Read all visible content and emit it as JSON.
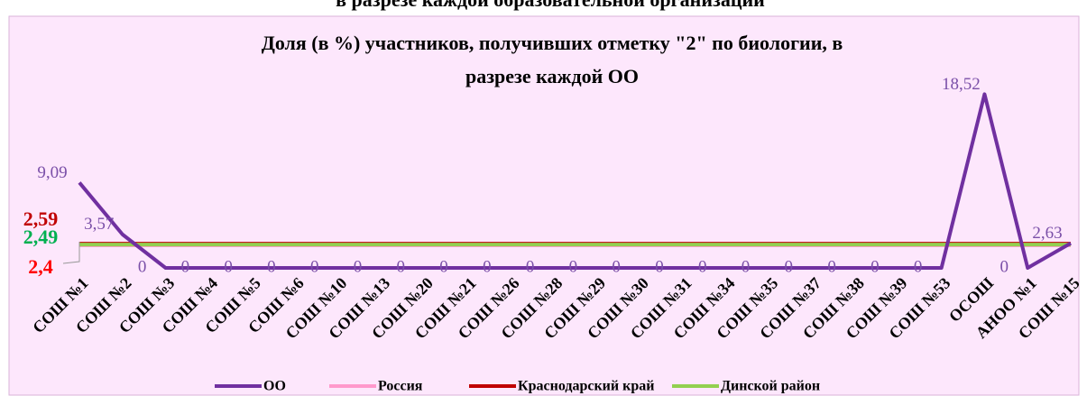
{
  "header": {
    "title": "в разрезе каждой образовательной организации"
  },
  "chart_data": {
    "type": "line",
    "title": [
      "Доля (в %) участников, получивших отметку \"2\" по биологии, в",
      "разрезе каждой ОО"
    ],
    "categories": [
      "СОШ №1",
      "СОШ №2",
      "СОШ №3",
      "СОШ №4",
      "СОШ №5",
      "СОШ №6",
      "СОШ №10",
      "СОШ №13",
      "СОШ №20",
      "СОШ №21",
      "СОШ №26",
      "СОШ №28",
      "СОШ №29",
      "СОШ №30",
      "СОШ №31",
      "СОШ №34",
      "СОШ №35",
      "СОШ №37",
      "СОШ №38",
      "СОШ №39",
      "СОШ №53",
      "ОСОШ",
      "АНОО №1",
      "СОШ №15"
    ],
    "ylim": [
      0,
      20
    ],
    "series": [
      {
        "name": "ОО",
        "color": "#7030a0",
        "values": [
          9.09,
          3.57,
          0,
          0,
          0,
          0,
          0,
          0,
          0,
          0,
          0,
          0,
          0,
          0,
          0,
          0,
          0,
          0,
          0,
          0,
          0,
          18.52,
          0,
          2.63
        ],
        "value_labels": [
          "9,09",
          "3,57",
          "0",
          "0",
          "0",
          "0",
          "0",
          "0",
          "0",
          "0",
          "0",
          "0",
          "0",
          "0",
          "0",
          "0",
          "0",
          "0",
          "0",
          "0",
          "0",
          "18,52",
          "0",
          "2,63"
        ]
      },
      {
        "name": "Россия",
        "color": "#ff99cc",
        "value": 2.4,
        "value_label": "2,4",
        "label_color": "#ff0000"
      },
      {
        "name": "Краснодарский край",
        "color": "#c00000",
        "value": 2.59,
        "value_label": "2,59",
        "label_color": "#c00000"
      },
      {
        "name": "Динской район",
        "color": "#92d050",
        "value": 2.49,
        "value_label": "2,49",
        "label_color": "#00b050"
      }
    ]
  }
}
